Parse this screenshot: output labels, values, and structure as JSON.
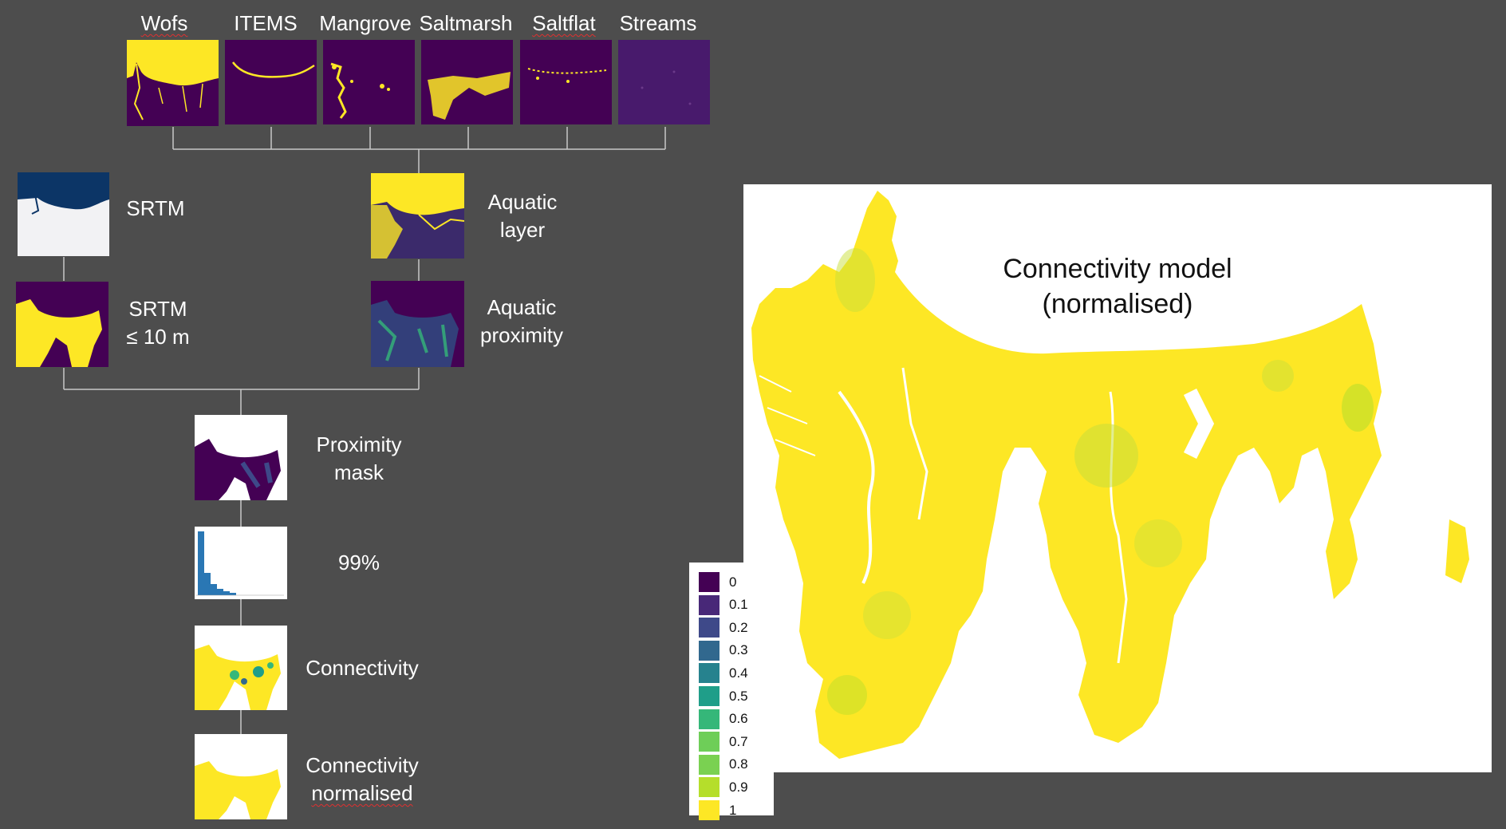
{
  "inputs": {
    "wofs": "Wofs",
    "items": "ITEMS",
    "mangrove": "Mangrove",
    "saltmarsh": "Saltmarsh",
    "saltflat": "Saltflat",
    "streams": "Streams"
  },
  "srtm": "SRTM",
  "aquatic_layer": {
    "line1": "Aquatic",
    "line2": "layer"
  },
  "srtm_10m": {
    "line1": "SRTM",
    "line2": "≤ 10 m"
  },
  "aquatic_proximity": {
    "line1": "Aquatic",
    "line2": "proximity"
  },
  "proximity_mask": {
    "line1": "Proximity",
    "line2": "mask"
  },
  "percentile": "99%",
  "connectivity": "Connectivity",
  "connectivity_normalised": {
    "line1": "Connectivity",
    "line2": "normalised"
  },
  "main_map": {
    "title_line1": "Connectivity model",
    "title_line2": "(normalised)"
  },
  "legend": {
    "entries": [
      "0",
      "0.1",
      "0.2",
      "0.3",
      "0.4",
      "0.5",
      "0.6",
      "0.7",
      "0.8",
      "0.9",
      "1"
    ],
    "colors": [
      "#440154",
      "#482878",
      "#3e4989",
      "#31688e",
      "#26828e",
      "#1f9e89",
      "#35b779",
      "#6ece58",
      "#7ad151",
      "#b5de2b",
      "#fde725"
    ]
  },
  "colors": {
    "background": "#4d4d4d",
    "viridis_dark": "#440154",
    "viridis_yellow": "#fde725",
    "srtm_ocean": "#0c3566",
    "histogram_bar": "#2a77b4"
  }
}
